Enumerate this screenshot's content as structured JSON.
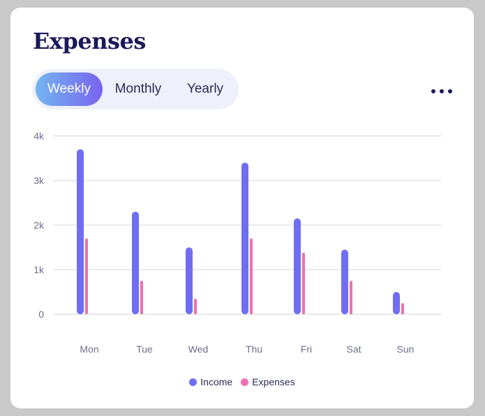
{
  "header": {
    "title": "Expenses",
    "more_icon": "more-horizontal-icon"
  },
  "tabs": [
    {
      "label": "Weekly",
      "active": true
    },
    {
      "label": "Monthly",
      "active": false
    },
    {
      "label": "Yearly",
      "active": false
    }
  ],
  "colors": {
    "income": "#6f6ef2",
    "expenses": "#f06fb4",
    "grid": "#d5d6de",
    "title": "#1a1a5a"
  },
  "chart_data": {
    "type": "bar",
    "categories": [
      "Mon",
      "Tue",
      "Wed",
      "Thu",
      "Fri",
      "Sat",
      "Sun"
    ],
    "series": [
      {
        "name": "Income",
        "values": [
          3700,
          2300,
          1500,
          3400,
          2150,
          1450,
          500
        ]
      },
      {
        "name": "Expenses",
        "values": [
          1700,
          750,
          350,
          1700,
          1380,
          750,
          250
        ]
      }
    ],
    "ylim": [
      0,
      4000
    ],
    "y_ticks": [
      {
        "value": 0,
        "label": "0"
      },
      {
        "value": 1000,
        "label": "1k"
      },
      {
        "value": 2000,
        "label": "2k"
      },
      {
        "value": 3000,
        "label": "3k"
      },
      {
        "value": 4000,
        "label": "4k"
      }
    ],
    "grid": true,
    "legend_position": "bottom"
  }
}
